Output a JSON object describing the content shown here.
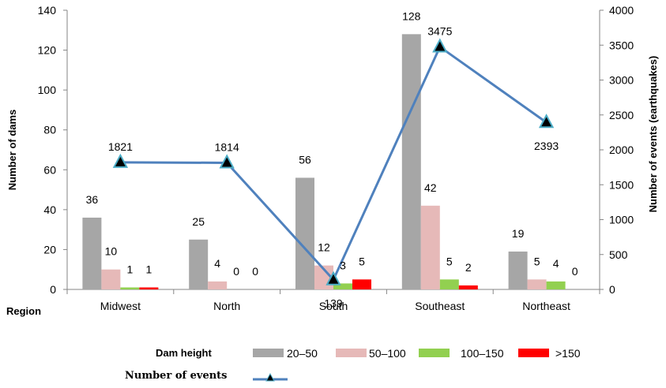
{
  "chart_data": {
    "type": "bar",
    "categories": [
      "Midwest",
      "North",
      "South",
      "Southeast",
      "Northeast"
    ],
    "xlabel": "Region",
    "ylabel": "Number of dams",
    "y2label": "Number of events (earthquakes)",
    "ylim": [
      0,
      140
    ],
    "y2lim": [
      0,
      4000
    ],
    "yticks": [
      0,
      20,
      40,
      60,
      80,
      100,
      120,
      140
    ],
    "y2ticks": [
      0,
      500,
      1000,
      1500,
      2000,
      2500,
      3000,
      3500,
      4000
    ],
    "grid": false,
    "legend_position": "bottom",
    "bar_group_title": "Dam height",
    "series": [
      {
        "name": "20–50",
        "color": "#a6a6a6",
        "values": [
          36,
          25,
          56,
          128,
          19
        ]
      },
      {
        "name": "50–100",
        "color": "#e6b9b8",
        "values": [
          10,
          4,
          12,
          42,
          5
        ]
      },
      {
        "name": "100–150",
        "color": "#92d050",
        "values": [
          1,
          0,
          3,
          5,
          4
        ]
      },
      {
        "name": ">150",
        "color": "#ff0000",
        "values": [
          1,
          0,
          5,
          2,
          0
        ]
      }
    ],
    "line_series": {
      "name": "Number of events",
      "axis": "right",
      "color": "#4f81bd",
      "marker": "triangle",
      "marker_fill": "#000000",
      "marker_stroke": "#4bacc6",
      "values": [
        1821,
        1814,
        139,
        3475,
        2393
      ]
    }
  }
}
